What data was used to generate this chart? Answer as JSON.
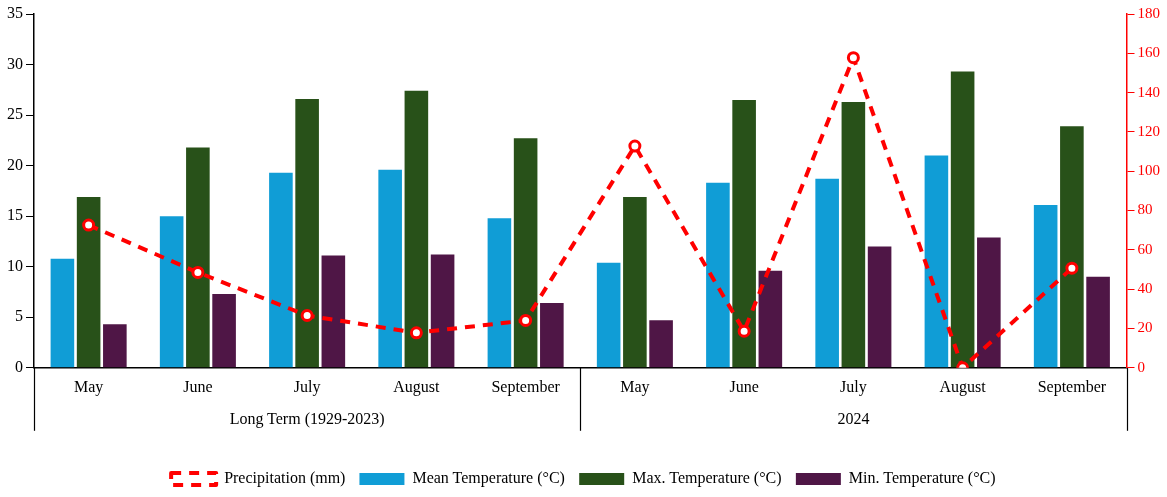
{
  "chart_data": {
    "type": "bar",
    "categories": [
      "May",
      "June",
      "July",
      "August",
      "September",
      "May",
      "June",
      "July",
      "August",
      "September"
    ],
    "series": [
      {
        "name": "Mean Temperature (°C)",
        "color": "#109dd6",
        "values": [
          10.8,
          15.0,
          19.3,
          19.6,
          14.8,
          10.4,
          18.3,
          18.7,
          21.0,
          16.1
        ]
      },
      {
        "name": "Max. Temperature (°C)",
        "color": "#285119",
        "values": [
          16.9,
          21.8,
          26.6,
          27.4,
          22.7,
          16.9,
          26.5,
          26.3,
          29.3,
          23.9
        ]
      },
      {
        "name": "Min. Temperature (°C)",
        "color": "#4f1646",
        "values": [
          4.3,
          7.3,
          11.1,
          11.2,
          6.4,
          4.7,
          9.6,
          12.0,
          12.9,
          9.0
        ]
      },
      {
        "name": "Precipitation (mm)",
        "type": "line",
        "axis": "y2",
        "color": "#ff0000",
        "marker": "circle",
        "line_style": "dashed",
        "values": [
          72.6,
          48.5,
          26.6,
          17.8,
          24.1,
          112.8,
          18.6,
          157.8,
          0,
          50.7
        ]
      }
    ],
    "ylim": [
      0,
      35
    ],
    "yticks": [
      0,
      5,
      10,
      15,
      20,
      25,
      30,
      35
    ],
    "y2lim": [
      0,
      180
    ],
    "y2ticks": [
      0,
      20,
      40,
      60,
      80,
      100,
      120,
      140,
      160,
      180
    ],
    "annotations": [
      "Long Term (1929-2023)",
      "2024"
    ],
    "grid": false,
    "legend": "bottom"
  }
}
